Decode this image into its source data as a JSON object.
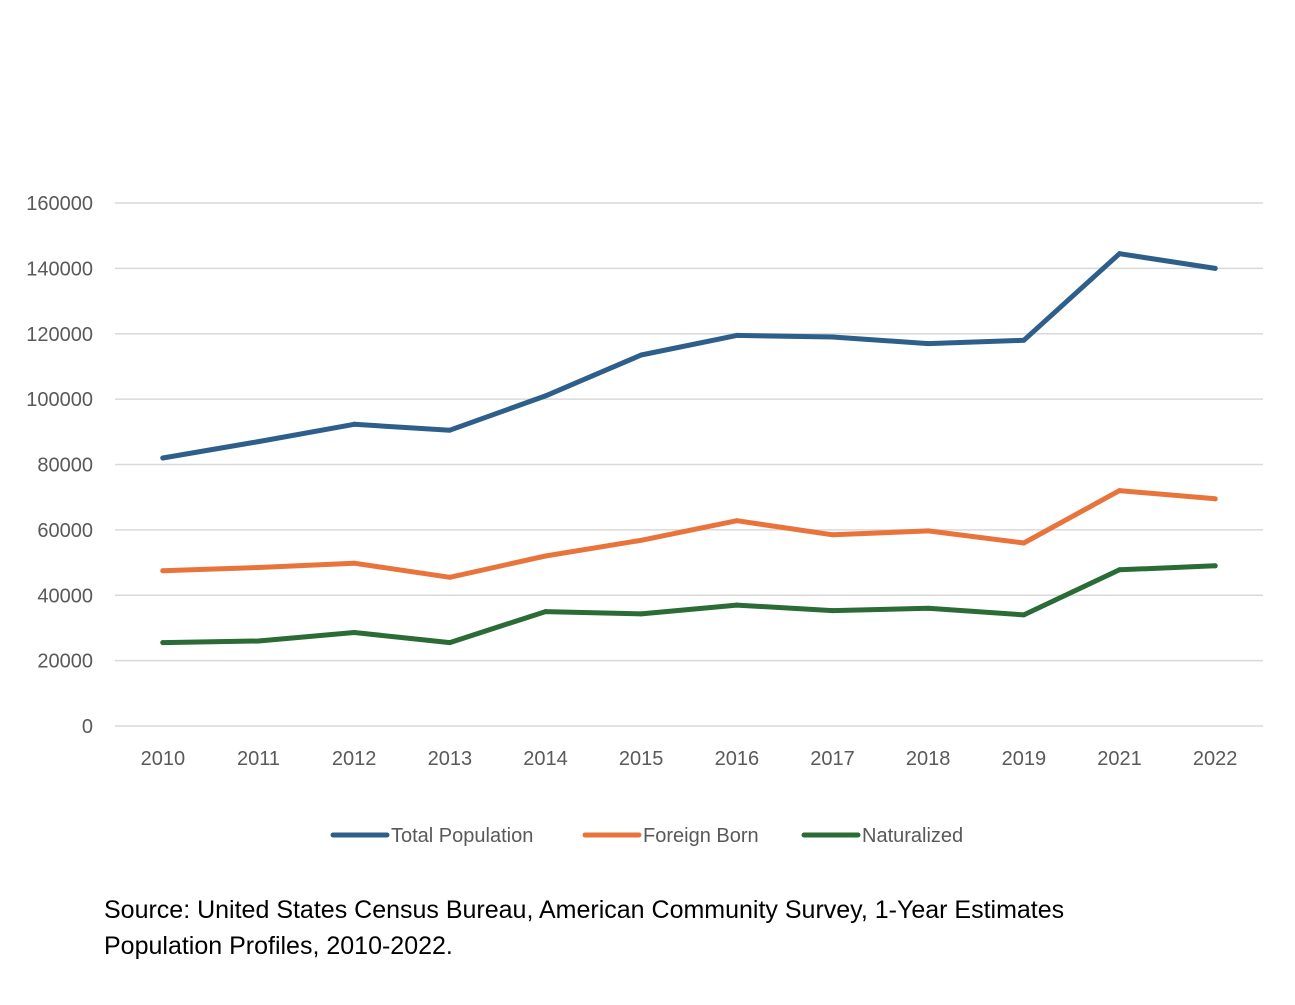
{
  "chart_data": {
    "type": "line",
    "title": "",
    "xlabel": "",
    "ylabel": "",
    "ylim": [
      0,
      160000
    ],
    "y_ticks": [
      0,
      20000,
      40000,
      60000,
      80000,
      100000,
      120000,
      140000,
      160000
    ],
    "y_tick_labels": [
      "0",
      "20000",
      "40000",
      "60000",
      "80000",
      "100000",
      "120000",
      "140000",
      "160000"
    ],
    "grid": "horizontal",
    "legend_position": "bottom-center",
    "categories": [
      "2010",
      "2011",
      "2012",
      "2013",
      "2014",
      "2015",
      "2016",
      "2017",
      "2018",
      "2019",
      "2021",
      "2022"
    ],
    "series": [
      {
        "name": "Total Population",
        "color": "#2e5f8a",
        "values": [
          82000,
          87000,
          92300,
          90500,
          101000,
          113500,
          119500,
          119000,
          117000,
          118000,
          144500,
          140000
        ]
      },
      {
        "name": "Foreign Born",
        "color": "#e8743b",
        "values": [
          47500,
          48500,
          49800,
          45500,
          52000,
          56800,
          62800,
          58500,
          59700,
          56000,
          72000,
          69500
        ]
      },
      {
        "name": "Naturalized",
        "color": "#2a6b36",
        "values": [
          25500,
          26000,
          28600,
          25500,
          35000,
          34300,
          37000,
          35300,
          36000,
          34000,
          47800,
          49000
        ]
      }
    ]
  },
  "source": {
    "line1": "Source: United States Census Bureau, American Community Survey, 1-Year Estimates",
    "line2": "Population Profiles, 2010-2022."
  }
}
